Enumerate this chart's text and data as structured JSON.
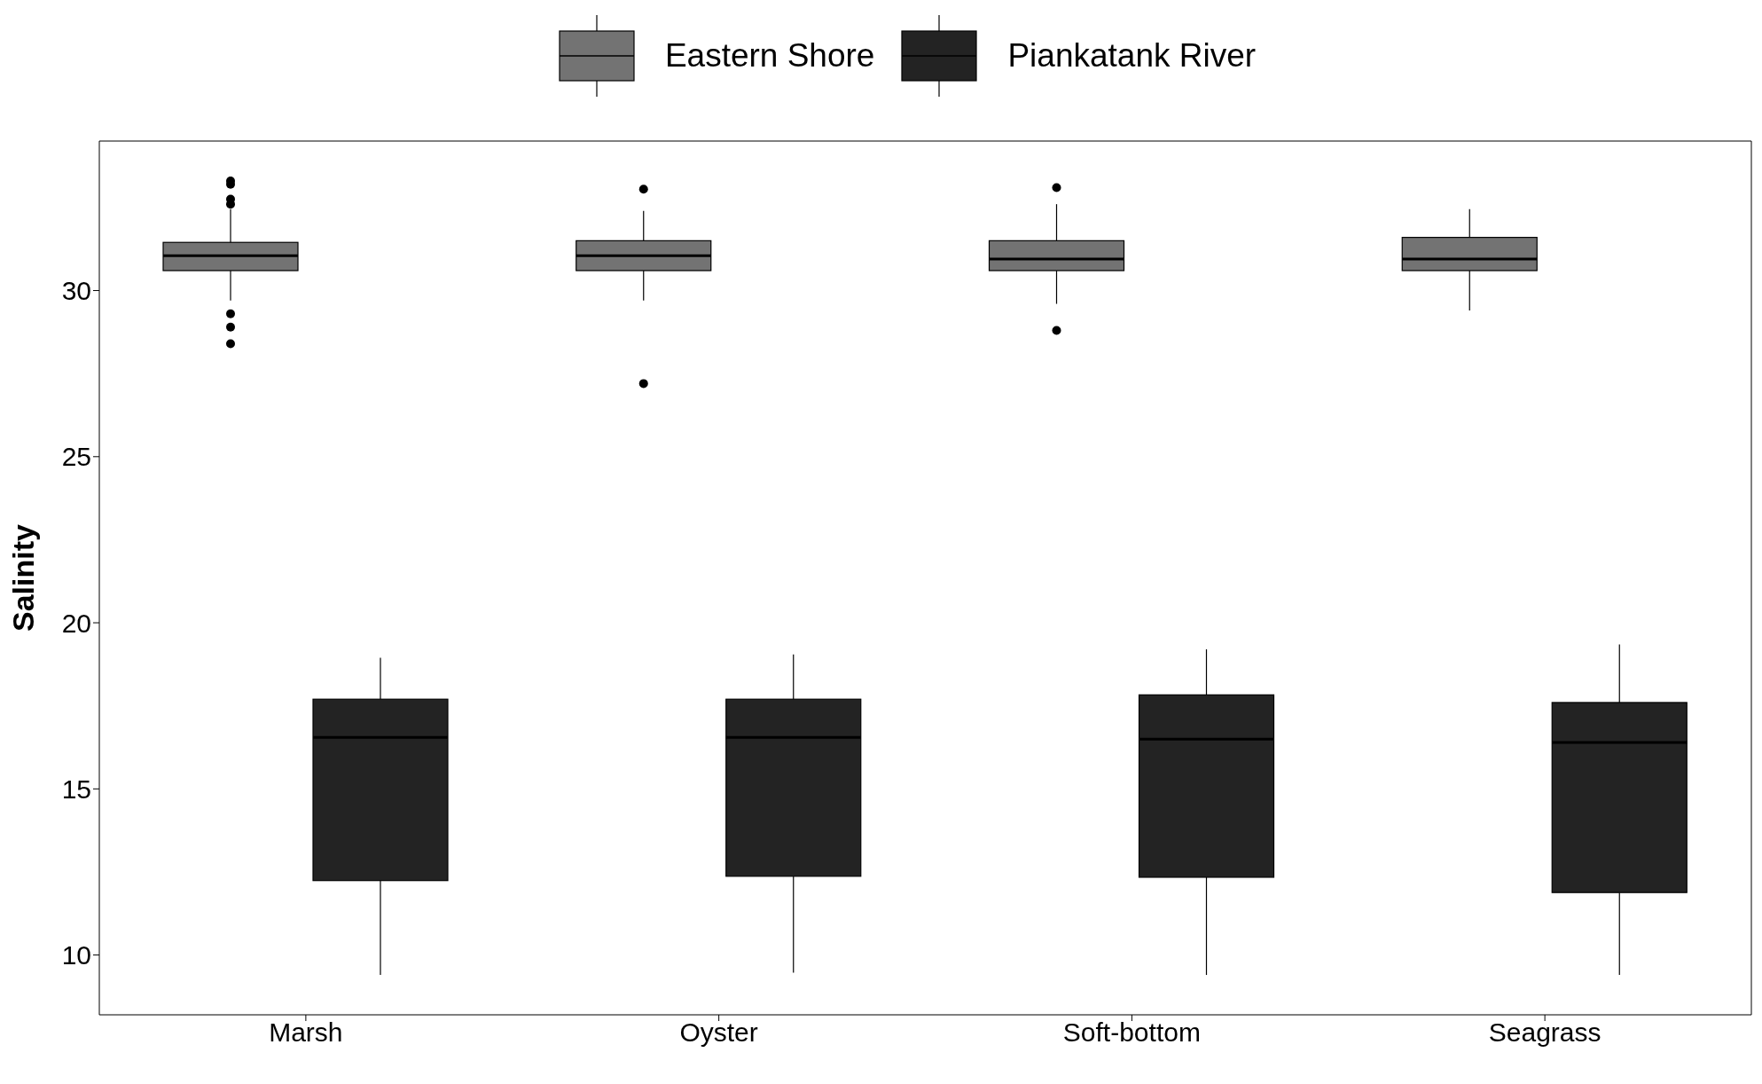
{
  "chart_data": {
    "type": "box",
    "ylabel": "Salinity",
    "categories": [
      "Marsh",
      "Oyster",
      "Soft-bottom",
      "Seagrass"
    ],
    "ylim": [
      8.2,
      34.5
    ],
    "yticks": [
      10,
      15,
      20,
      25,
      30
    ],
    "legend": "top",
    "series": [
      {
        "name": "Eastern Shore",
        "color": "#737373",
        "boxes": [
          {
            "low": 29.7,
            "q1": 30.6,
            "median": 31.05,
            "q3": 31.45,
            "high": 32.45,
            "outliers": [
              33.3,
              33.2,
              32.75,
              32.6,
              29.3,
              28.9,
              28.4
            ]
          },
          {
            "low": 29.7,
            "q1": 30.6,
            "median": 31.05,
            "q3": 31.5,
            "high": 32.4,
            "outliers": [
              33.05,
              27.2
            ]
          },
          {
            "low": 29.6,
            "q1": 30.6,
            "median": 30.95,
            "q3": 31.5,
            "high": 32.6,
            "outliers": [
              33.1,
              28.8
            ]
          },
          {
            "low": 29.4,
            "q1": 30.6,
            "median": 30.95,
            "q3": 31.6,
            "high": 32.45
          }
        ]
      },
      {
        "name": "Piankatank River",
        "color": "#232323",
        "boxes": [
          {
            "low": 9.4,
            "q1": 12.24,
            "median": 16.55,
            "q3": 17.7,
            "high": 18.95
          },
          {
            "low": 9.47,
            "q1": 12.37,
            "median": 16.55,
            "q3": 17.7,
            "high": 19.05
          },
          {
            "low": 9.4,
            "q1": 12.34,
            "median": 16.5,
            "q3": 17.83,
            "high": 19.2
          },
          {
            "low": 9.4,
            "q1": 11.88,
            "median": 16.4,
            "q3": 17.6,
            "high": 19.35
          }
        ]
      }
    ]
  }
}
